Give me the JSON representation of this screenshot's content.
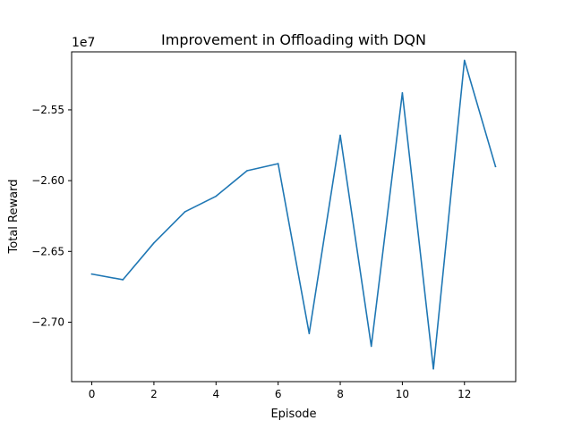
{
  "chart_data": {
    "type": "line",
    "title": "Improvement in Offloading with DQN",
    "xlabel": "Episode",
    "ylabel": "Total Reward",
    "offset_label": "1e7",
    "xlim": [
      -0.65,
      13.65
    ],
    "ylim": [
      -27.42,
      -25.09
    ],
    "x_ticks": [
      0,
      2,
      4,
      6,
      8,
      10,
      12
    ],
    "x_tick_labels": [
      "0",
      "2",
      "4",
      "6",
      "8",
      "10",
      "12"
    ],
    "y_ticks": [
      -27.0,
      -26.5,
      -26.0,
      -25.5
    ],
    "y_tick_labels": [
      "−2.70",
      "−2.65",
      "−2.60",
      "−2.55"
    ],
    "grid": false,
    "y_unit_scale": 1000000,
    "series": [
      {
        "color": "#1f77b4",
        "x": [
          0,
          1,
          2,
          3,
          4,
          5,
          6,
          7,
          8,
          9,
          10,
          11,
          12,
          13
        ],
        "y": [
          -26.66,
          -26.7,
          -26.44,
          -26.22,
          -26.11,
          -25.93,
          -25.88,
          -27.08,
          -25.68,
          -27.17,
          -25.38,
          -27.33,
          -25.15,
          -25.9
        ]
      }
    ]
  }
}
